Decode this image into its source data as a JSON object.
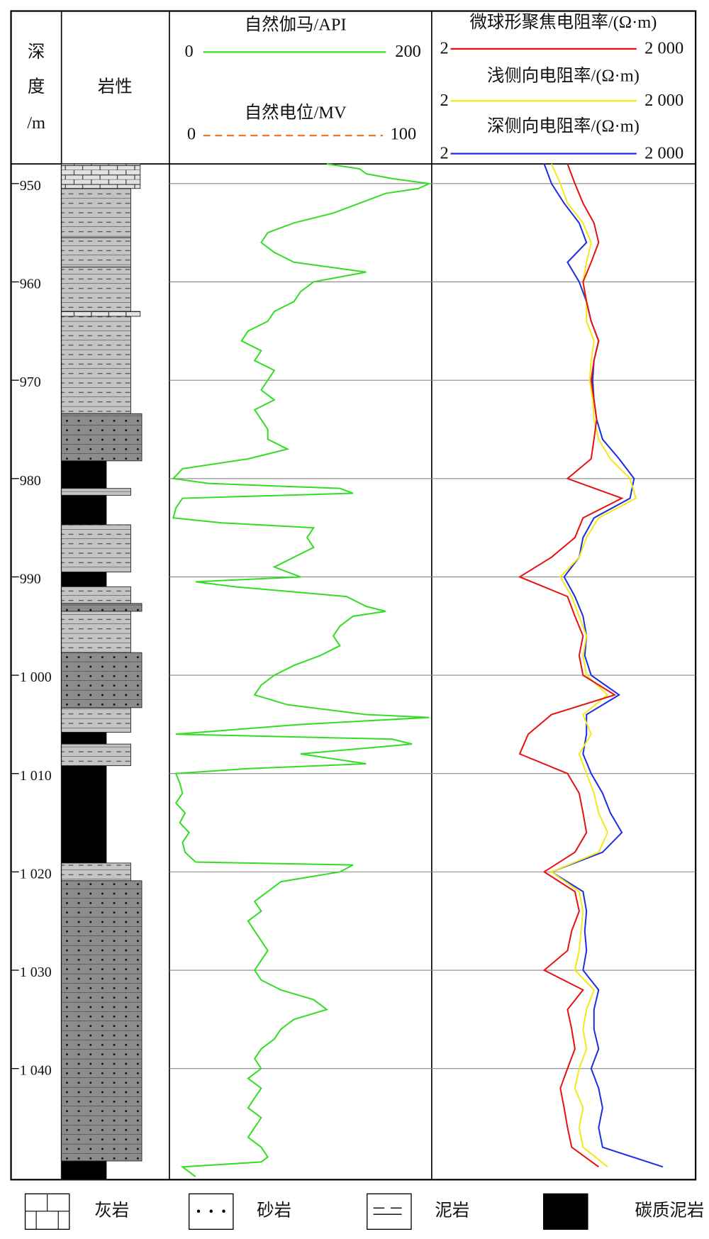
{
  "chart_data": {
    "type": "well-log",
    "depth_label": [
      "深",
      "度",
      "/m"
    ],
    "ylim": [
      948,
      1051.3
    ],
    "yticks": [
      950,
      960,
      970,
      980,
      990,
      {
        "value": 1000,
        "label": "1 000"
      },
      {
        "value": 1010,
        "label": "1 010"
      },
      {
        "value": 1020,
        "label": "1 020"
      },
      {
        "value": 1030,
        "label": "1 030"
      },
      {
        "value": 1040,
        "label": "1 040"
      }
    ],
    "lithology": {
      "title": "岩性",
      "rock_types": [
        "灰岩",
        "砂岩",
        "泥岩",
        "碳质泥岩"
      ],
      "layers": [
        {
          "top": 948,
          "bottom": 950.5,
          "rock": 0
        },
        {
          "top": 950.5,
          "bottom": 955.5,
          "rock": 2
        },
        {
          "top": 955.5,
          "bottom": 958.5,
          "rock": 2
        },
        {
          "top": 958.5,
          "bottom": 963,
          "rock": 2
        },
        {
          "top": 963,
          "bottom": 963.5,
          "rock": 0
        },
        {
          "top": 963.5,
          "bottom": 973.4,
          "rock": 2
        },
        {
          "top": 973.4,
          "bottom": 978.2,
          "rock": 1
        },
        {
          "top": 978.2,
          "bottom": 981,
          "rock": 3
        },
        {
          "top": 981,
          "bottom": 981.7,
          "rock": 2
        },
        {
          "top": 981.7,
          "bottom": 984.7,
          "rock": 3
        },
        {
          "top": 984.7,
          "bottom": 989.5,
          "rock": 2
        },
        {
          "top": 989.5,
          "bottom": 991,
          "rock": 3
        },
        {
          "top": 991,
          "bottom": 992.7,
          "rock": 2
        },
        {
          "top": 992.7,
          "bottom": 993.5,
          "rock": 1
        },
        {
          "top": 993.5,
          "bottom": 997.7,
          "rock": 2
        },
        {
          "top": 997.7,
          "bottom": 1003.3,
          "rock": 1
        },
        {
          "top": 1003.3,
          "bottom": 1005.8,
          "rock": 2
        },
        {
          "top": 1005.8,
          "bottom": 1007,
          "rock": 3
        },
        {
          "top": 1007,
          "bottom": 1009.2,
          "rock": 2
        },
        {
          "top": 1009.2,
          "bottom": 1019.1,
          "rock": 3
        },
        {
          "top": 1019.1,
          "bottom": 1020.9,
          "rock": 2
        },
        {
          "top": 1020.9,
          "bottom": 1049.4,
          "rock": 1
        },
        {
          "top": 1049.4,
          "bottom": 1051.3,
          "rock": 3
        }
      ]
    },
    "gamma": {
      "name": "自然伽马/API",
      "color": "#33dd22",
      "xlim": [
        0,
        200
      ],
      "xticks": [
        0,
        200
      ],
      "depth": [
        948,
        948.5,
        949,
        949.5,
        950,
        950.5,
        951,
        952,
        953,
        954,
        955,
        956,
        957,
        958,
        959,
        960,
        961,
        962,
        963,
        964,
        965,
        966,
        967,
        968,
        969,
        970,
        971,
        972,
        973,
        974,
        975,
        976,
        977,
        978,
        979,
        980,
        980.5,
        981,
        981.5,
        982,
        983,
        984,
        984.5,
        985,
        986,
        987,
        988,
        989,
        990,
        990.5,
        991,
        992,
        993,
        993.5,
        994,
        995,
        996,
        997,
        998,
        999,
        1000,
        1001,
        1002,
        1003,
        1004,
        1004.3,
        1005,
        1006,
        1006.5,
        1007,
        1008,
        1009,
        1009.5,
        1010,
        1011,
        1012,
        1013,
        1014,
        1015,
        1016,
        1017,
        1018,
        1019,
        1019.3,
        1020,
        1021,
        1022,
        1023,
        1024,
        1025,
        1026,
        1027,
        1028,
        1029,
        1030,
        1031,
        1032,
        1033,
        1034,
        1035,
        1036,
        1037,
        1038,
        1039,
        1040,
        1041,
        1042,
        1043,
        1044,
        1045,
        1046,
        1047,
        1048,
        1049,
        1049.5,
        1050,
        1051
      ],
      "values": [
        120,
        145,
        150,
        170,
        198,
        190,
        165,
        145,
        125,
        95,
        75,
        70,
        80,
        95,
        150,
        110,
        100,
        95,
        80,
        75,
        60,
        55,
        70,
        65,
        80,
        75,
        70,
        80,
        65,
        70,
        75,
        75,
        90,
        60,
        10,
        3,
        30,
        130,
        140,
        10,
        5,
        3,
        40,
        110,
        105,
        110,
        95,
        80,
        100,
        20,
        50,
        135,
        150,
        165,
        140,
        130,
        125,
        130,
        115,
        95,
        80,
        70,
        65,
        90,
        150,
        198,
        100,
        5,
        170,
        185,
        100,
        150,
        60,
        5,
        8,
        10,
        5,
        12,
        8,
        15,
        10,
        12,
        20,
        140,
        130,
        85,
        75,
        65,
        70,
        60,
        65,
        70,
        75,
        70,
        65,
        70,
        85,
        110,
        120,
        95,
        85,
        80,
        70,
        65,
        70,
        60,
        70,
        65,
        60,
        70,
        65,
        60,
        70,
        75,
        70,
        10,
        20
      ]
    },
    "sp": {
      "name": "自然电位/MV",
      "color": "#f07820",
      "xlim": [
        0,
        100
      ],
      "xticks": [
        0,
        100
      ]
    },
    "resistivity": {
      "xlim": [
        2,
        2000
      ],
      "log": true,
      "xticks": [
        2,
        {
          "value": 2000,
          "label": "2 000"
        }
      ],
      "depth": [
        948,
        950,
        952,
        954,
        956,
        958,
        960,
        962,
        964,
        966,
        968,
        970,
        972,
        974,
        976,
        978,
        980,
        982,
        984,
        986,
        988,
        990,
        992,
        994,
        996,
        998,
        1000,
        1002,
        1004,
        1006,
        1008,
        1010,
        1012,
        1014,
        1016,
        1018,
        1020,
        1022,
        1024,
        1026,
        1028,
        1030,
        1032,
        1034,
        1036,
        1038,
        1040,
        1042,
        1044,
        1046,
        1048,
        1050
      ],
      "series": [
        {
          "name": "微球形聚焦电阻率/(Ω·m)",
          "color": "#e81010",
          "values": [
            70,
            85,
            105,
            140,
            158,
            130,
            105,
            115,
            130,
            158,
            140,
            130,
            140,
            150,
            140,
            130,
            70,
            290,
            105,
            85,
            46,
            20,
            70,
            85,
            105,
            95,
            105,
            240,
            46,
            25,
            20,
            70,
            95,
            105,
            115,
            85,
            38,
            85,
            95,
            78,
            70,
            38,
            105,
            70,
            78,
            85,
            70,
            58,
            64,
            70,
            78,
            158
          ]
        },
        {
          "name": "浅侧向电阻率/(Ω·m)",
          "color": "#f5e81a",
          "values": [
            46,
            58,
            70,
            105,
            130,
            115,
            105,
            115,
            115,
            140,
            130,
            125,
            135,
            140,
            158,
            215,
            360,
            420,
            158,
            115,
            95,
            58,
            78,
            95,
            115,
            105,
            115,
            200,
            105,
            130,
            95,
            115,
            140,
            158,
            200,
            158,
            46,
            95,
            105,
            100,
            95,
            85,
            140,
            115,
            105,
            115,
            95,
            85,
            105,
            95,
            105,
            200
          ]
        },
        {
          "name": "深侧向电阻率/(Ω·m)",
          "color": "#1a2ee0",
          "values": [
            38,
            46,
            64,
            95,
            115,
            70,
            95,
            115,
            130,
            158,
            140,
            135,
            140,
            150,
            175,
            270,
            400,
            360,
            140,
            105,
            95,
            64,
            85,
            105,
            115,
            110,
            130,
            270,
            115,
            115,
            105,
            130,
            175,
            215,
            290,
            175,
            46,
            105,
            115,
            110,
            115,
            105,
            158,
            140,
            140,
            158,
            130,
            158,
            175,
            158,
            175,
            850
          ]
        }
      ]
    }
  }
}
